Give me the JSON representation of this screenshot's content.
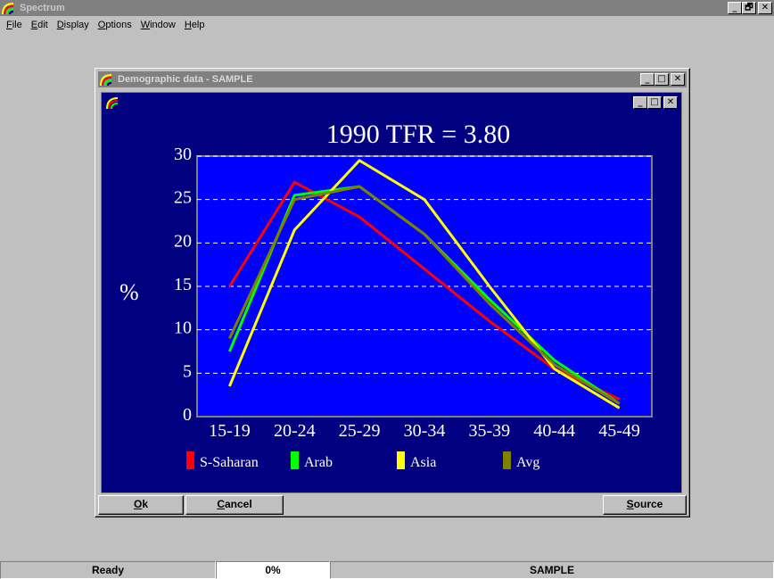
{
  "app": {
    "title": "Spectrum",
    "window_buttons": {
      "minimize": "_",
      "restore": "🗗",
      "close": "✕"
    }
  },
  "menu": [
    {
      "label": "File",
      "u": "F",
      "rest": "ile"
    },
    {
      "label": "Edit",
      "u": "E",
      "rest": "dit"
    },
    {
      "label": "Display",
      "u": "D",
      "rest": "isplay"
    },
    {
      "label": "Options",
      "u": "O",
      "rest": "ptions"
    },
    {
      "label": "Window",
      "u": "W",
      "rest": "indow"
    },
    {
      "label": "Help",
      "u": "H",
      "rest": "elp"
    }
  ],
  "demographic_window": {
    "title": "Demographic data - SAMPLE",
    "buttons": {
      "ok": {
        "u": "O",
        "rest": "k"
      },
      "cancel": {
        "u": "C",
        "rest": "ancel"
      },
      "source": {
        "u": "S",
        "rest": "ource"
      }
    }
  },
  "chart_data": {
    "type": "line",
    "title": "1990 TFR =  3.80",
    "ylabel": "%",
    "xlabel": "",
    "categories": [
      "15-19",
      "20-24",
      "25-29",
      "30-34",
      "35-39",
      "40-44",
      "45-49"
    ],
    "yticks": [
      "0",
      "5",
      "10",
      "15",
      "20",
      "25",
      "30"
    ],
    "ylim": [
      0,
      30
    ],
    "grid": true,
    "legend": "bottom",
    "series": [
      {
        "name": "S-Saharan",
        "color": "#ff0000",
        "values": [
          15.0,
          27.0,
          23.0,
          17.0,
          11.0,
          5.5,
          2.0
        ]
      },
      {
        "name": "Arab",
        "color": "#00ff00",
        "values": [
          7.5,
          25.5,
          26.5,
          21.0,
          13.5,
          6.5,
          1.5
        ]
      },
      {
        "name": "Asia",
        "color": "#ffff00",
        "values": [
          3.5,
          21.5,
          29.5,
          25.0,
          15.0,
          5.5,
          1.0
        ]
      },
      {
        "name": "Avg",
        "color": "#808000",
        "values": [
          9.0,
          25.0,
          26.5,
          21.0,
          13.0,
          6.0,
          1.5
        ]
      }
    ],
    "colors": {
      "background": "#000080",
      "plot": "#0000ff",
      "grid": "#ffffff",
      "text": "#ffffff"
    }
  },
  "status": {
    "ready": "Ready",
    "progress": "0%",
    "progress_value": 0,
    "file": "SAMPLE"
  }
}
